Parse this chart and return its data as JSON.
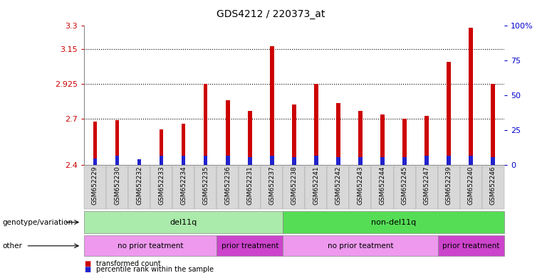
{
  "title": "GDS4212 / 220373_at",
  "samples": [
    "GSM652229",
    "GSM652230",
    "GSM652232",
    "GSM652233",
    "GSM652234",
    "GSM652235",
    "GSM652236",
    "GSM652231",
    "GSM652237",
    "GSM652238",
    "GSM652241",
    "GSM652242",
    "GSM652243",
    "GSM652244",
    "GSM652245",
    "GSM652247",
    "GSM652239",
    "GSM652240",
    "GSM652246"
  ],
  "transformed_count": [
    2.68,
    2.69,
    2.42,
    2.63,
    2.67,
    2.925,
    2.82,
    2.75,
    3.17,
    2.79,
    2.925,
    2.8,
    2.75,
    2.73,
    2.7,
    2.72,
    3.07,
    3.29,
    2.925
  ],
  "percentile_rank_pct": [
    5,
    7,
    4,
    7,
    7,
    7,
    7,
    6,
    7,
    6,
    7,
    6,
    6,
    6,
    6,
    7,
    7,
    7,
    6
  ],
  "ymin": 2.4,
  "ymax": 3.3,
  "yticks": [
    2.4,
    2.7,
    2.925,
    3.15,
    3.3
  ],
  "ytick_labels": [
    "2.4",
    "2.7",
    "2.925",
    "3.15",
    "3.3"
  ],
  "right_yticks_pct": [
    0,
    25,
    50,
    75,
    100
  ],
  "right_ytick_labels": [
    "0",
    "25",
    "50",
    "75",
    "100%"
  ],
  "bar_color": "#cc0000",
  "percentile_color": "#2222cc",
  "genotype_groups": [
    {
      "label": "del11q",
      "start": 0,
      "end": 9,
      "color": "#aaeaaa"
    },
    {
      "label": "non-del11q",
      "start": 9,
      "end": 19,
      "color": "#55dd55"
    }
  ],
  "other_groups": [
    {
      "label": "no prior teatment",
      "start": 0,
      "end": 6,
      "color": "#ee99ee"
    },
    {
      "label": "prior treatment",
      "start": 6,
      "end": 9,
      "color": "#cc44cc"
    },
    {
      "label": "no prior teatment",
      "start": 9,
      "end": 16,
      "color": "#ee99ee"
    },
    {
      "label": "prior treatment",
      "start": 16,
      "end": 19,
      "color": "#cc44cc"
    }
  ],
  "xlabel_genotype": "genotype/variation",
  "xlabel_other": "other",
  "legend_red": "transformed count",
  "legend_blue": "percentile rank within the sample"
}
